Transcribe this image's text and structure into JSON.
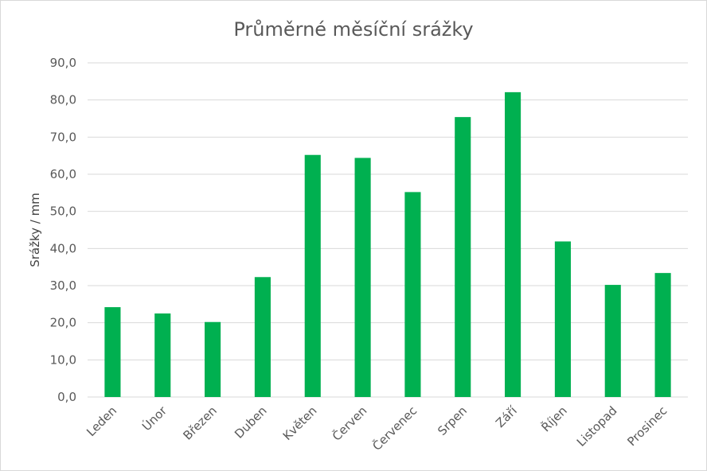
{
  "chart_data": {
    "type": "bar",
    "title": "Průměrné měsíční srážky",
    "xlabel": "",
    "ylabel": "Srážky / mm",
    "ylim": [
      0,
      90
    ],
    "y_ticks": [
      "0,0",
      "10,0",
      "20,0",
      "30,0",
      "40,0",
      "50,0",
      "60,0",
      "70,0",
      "80,0",
      "90,0"
    ],
    "grid": true,
    "legend": "none",
    "categories": [
      "Leden",
      "Únor",
      "Březen",
      "Duben",
      "Květen",
      "Červen",
      "Červenec",
      "Srpen",
      "Září",
      "Říjen",
      "Listopad",
      "Prosinec"
    ],
    "values": [
      24.2,
      22.5,
      20.2,
      32.3,
      65.2,
      64.4,
      55.2,
      75.4,
      82.1,
      41.9,
      30.2,
      33.4
    ],
    "colors": {
      "bar": "#00b050",
      "grid": "#d9d9d9",
      "text": "#595959"
    }
  }
}
